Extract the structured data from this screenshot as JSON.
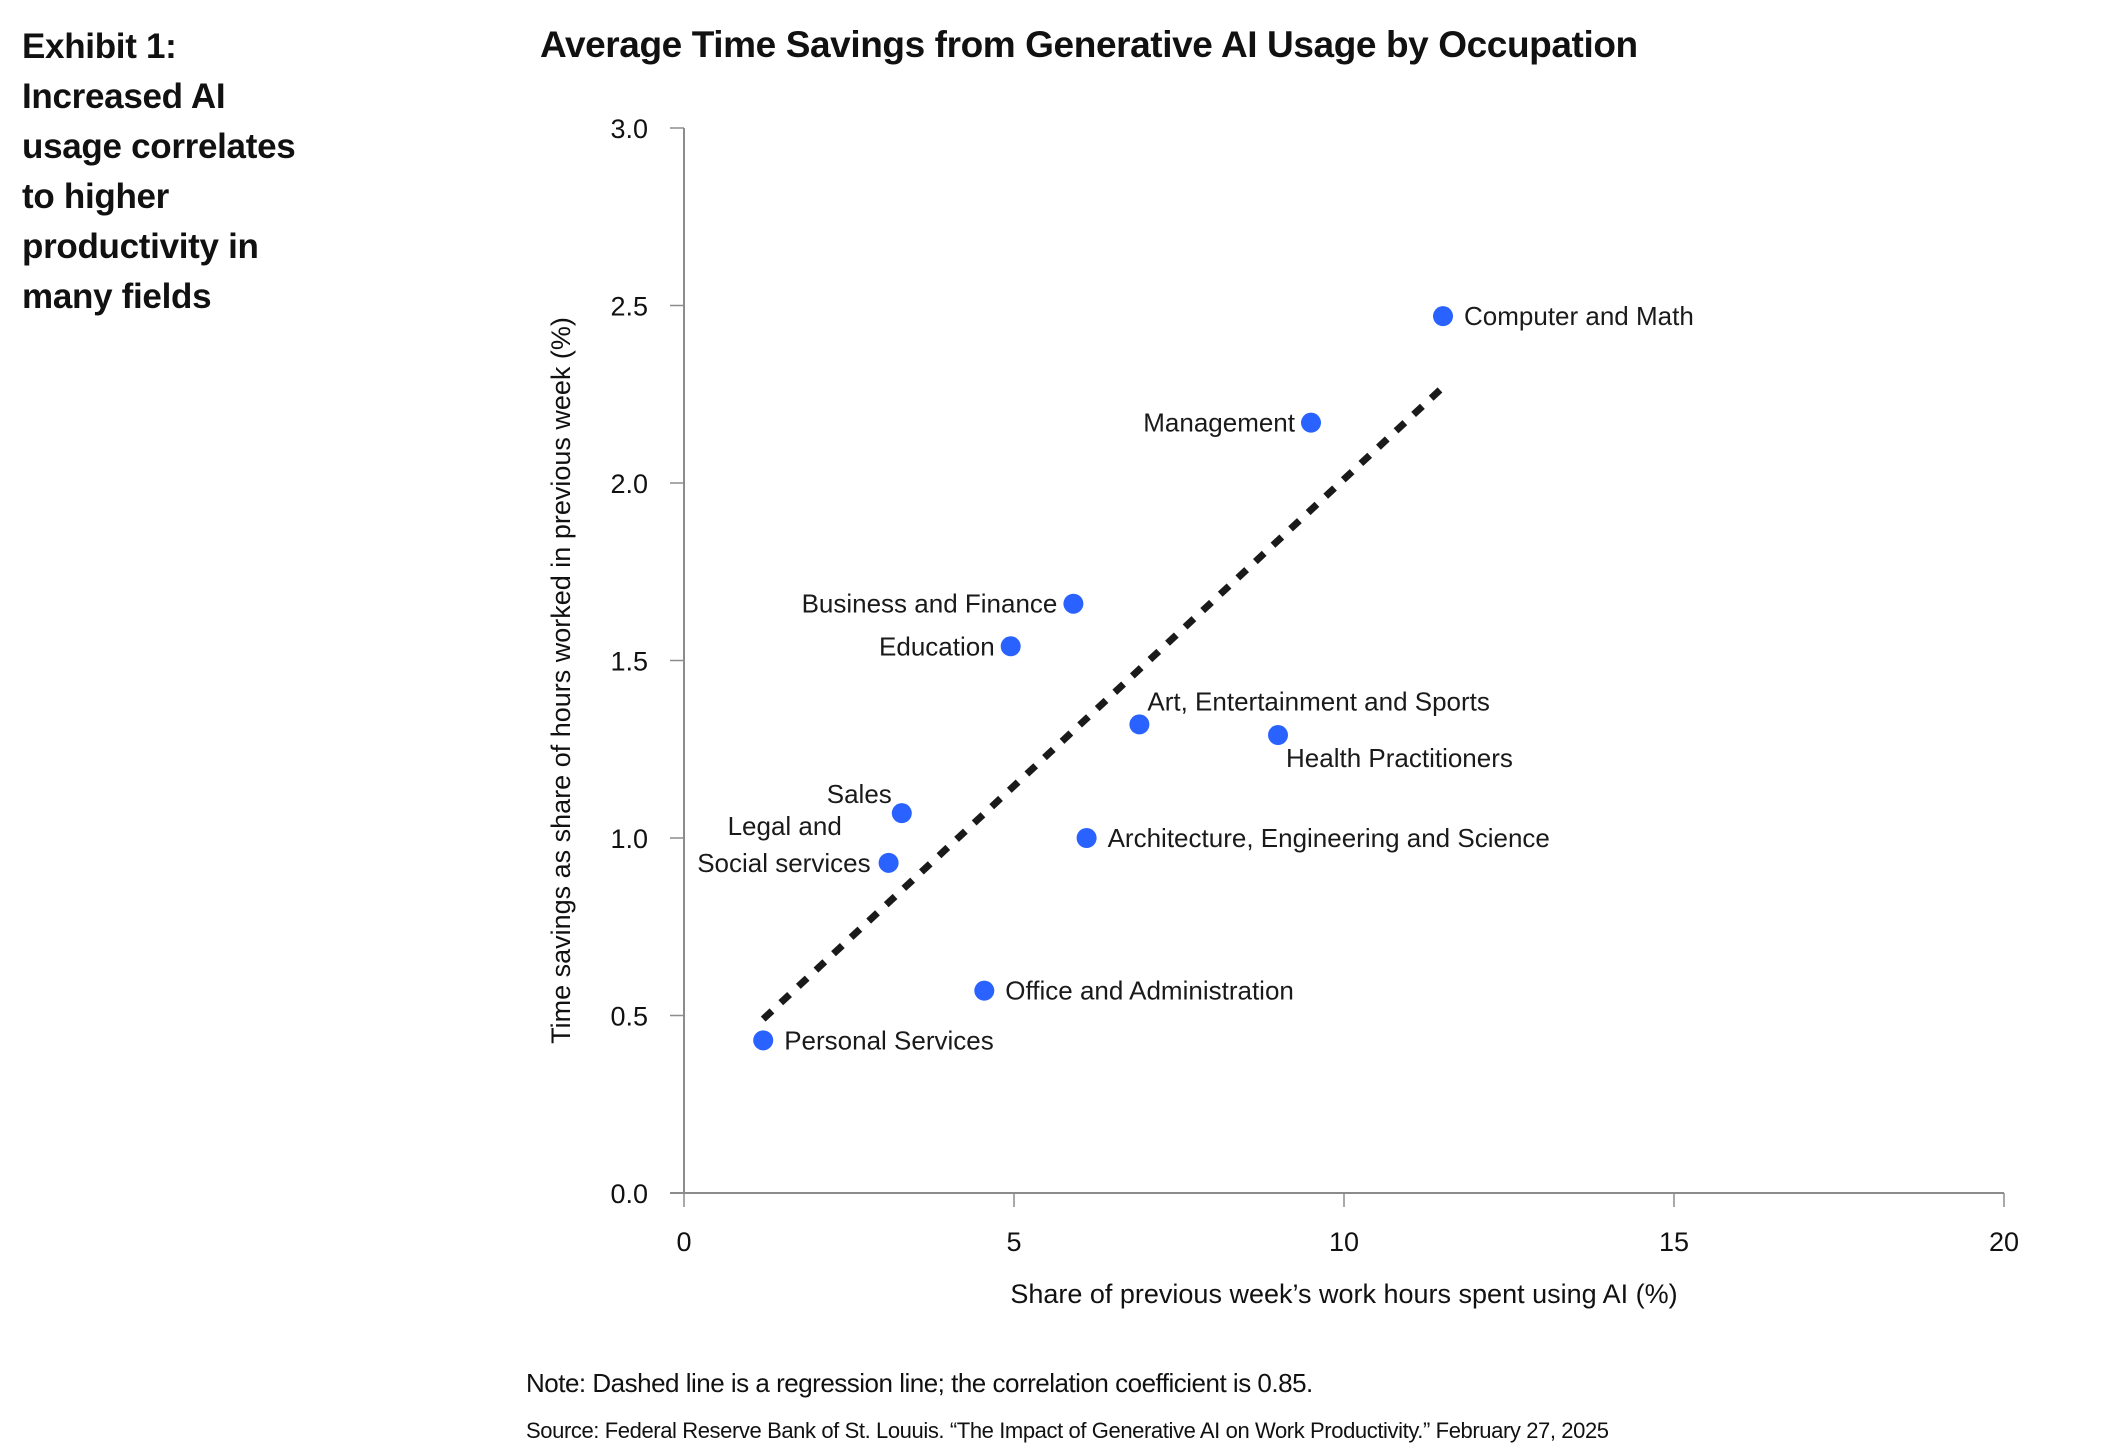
{
  "exhibit": {
    "lines": [
      "Exhibit 1:",
      "Increased AI",
      "usage correlates",
      "to higher",
      "productivity in",
      "many fields"
    ]
  },
  "footer": {
    "note": "Note: Dashed line is a regression line; the correlation coefficient is 0.85.",
    "source": "Source: Federal Reserve Bank of St. Louuis. “The Impact of Generative AI on Work Productivity.” February 27, 2025"
  },
  "colors": {
    "point": "#2962FF",
    "regression": "#1a1a1a",
    "axis": "#8c8c8c"
  },
  "chart_data": {
    "type": "scatter",
    "title": "Average Time Savings from Generative AI Usage by Occupation",
    "xlabel": "Share of previous week’s work hours spent using AI (%)",
    "ylabel": "Time savings as share of hours worked in previous week (%)",
    "xlim": [
      0,
      20
    ],
    "ylim": [
      0,
      3.0
    ],
    "xticks": [
      0,
      5,
      10,
      15,
      20
    ],
    "xtick_labels": [
      "0",
      "5",
      "10",
      "15",
      "20"
    ],
    "yticks": [
      0,
      0.5,
      1.0,
      1.5,
      2.0,
      2.5,
      3.0
    ],
    "ytick_labels": [
      "0.0",
      "0.5",
      "1.0",
      "1.5",
      "2.0",
      "2.5",
      "3.0"
    ],
    "grid": false,
    "legend": "none",
    "points": [
      {
        "label": "Computer and Math",
        "x": 11.5,
        "y": 2.47,
        "label_pos": "right"
      },
      {
        "label": "Management",
        "x": 9.5,
        "y": 2.17,
        "label_pos": "left"
      },
      {
        "label": "Business and Finance",
        "x": 5.9,
        "y": 1.66,
        "label_pos": "left"
      },
      {
        "label": "Education",
        "x": 4.95,
        "y": 1.54,
        "label_pos": "left"
      },
      {
        "label": "Art, Entertainment and Sports",
        "x": 6.9,
        "y": 1.32,
        "label_pos": "above-right"
      },
      {
        "label": "Health Practitioners",
        "x": 9.0,
        "y": 1.29,
        "label_pos": "below-right"
      },
      {
        "label": "Sales",
        "x": 3.3,
        "y": 1.07,
        "label_pos": "above-left"
      },
      {
        "label": "Legal and Social services",
        "label_lines": [
          "Legal and",
          "Social services"
        ],
        "x": 3.1,
        "y": 0.93,
        "label_pos": "left-two-line"
      },
      {
        "label": "Architecture, Engineering and Science",
        "x": 6.1,
        "y": 1.0,
        "label_pos": "right"
      },
      {
        "label": "Office and Administration",
        "x": 4.55,
        "y": 0.57,
        "label_pos": "right"
      },
      {
        "label": "Personal Services",
        "x": 1.2,
        "y": 0.43,
        "label_pos": "right"
      }
    ],
    "regression": {
      "style": "dashed",
      "x": [
        1.2,
        11.5
      ],
      "y": [
        0.49,
        2.27
      ]
    },
    "annotations": [
      "Dashed line is a regression line; the correlation coefficient is 0.85."
    ]
  }
}
